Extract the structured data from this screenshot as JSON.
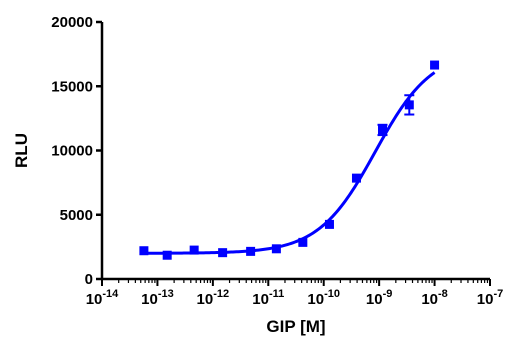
{
  "chart_data": {
    "type": "scatter",
    "title": "",
    "xlabel": "GIP [M]",
    "ylabel": "RLU",
    "x_scale": "log",
    "xlim": [
      1e-14,
      1e-07
    ],
    "ylim": [
      0,
      20000
    ],
    "grid": false,
    "legend": "none",
    "color": "#0000ff",
    "x_ticks": [
      {
        "base": "10",
        "exp": "-14"
      },
      {
        "base": "10",
        "exp": "-13"
      },
      {
        "base": "10",
        "exp": "-12"
      },
      {
        "base": "10",
        "exp": "-11"
      },
      {
        "base": "10",
        "exp": "-10"
      },
      {
        "base": "10",
        "exp": "-9"
      },
      {
        "base": "10",
        "exp": "-8"
      },
      {
        "base": "10",
        "exp": "-7"
      }
    ],
    "y_ticks": [
      "0",
      "5000",
      "10000",
      "15000",
      "20000"
    ],
    "series": [
      {
        "x": [
          5.7e-14,
          1.5e-13,
          4.6e-13,
          1.5e-12,
          4.8e-12,
          1.4e-11,
          4.2e-11,
          1.27e-10,
          3.9e-10,
          1.15e-09,
          3.5e-09,
          1e-08
        ],
        "y": [
          2200,
          1850,
          2250,
          2050,
          2150,
          2350,
          2850,
          4250,
          7850,
          11600,
          13550,
          16650
        ],
        "error": [
          0,
          0,
          0,
          0,
          0,
          0,
          0,
          0,
          0,
          400,
          750,
          0
        ]
      }
    ],
    "fit": {
      "model": "sigmoidal dose-response",
      "bottom": 2000,
      "top": 17800,
      "ec50": 8.5e-10,
      "hill": 0.85
    }
  }
}
